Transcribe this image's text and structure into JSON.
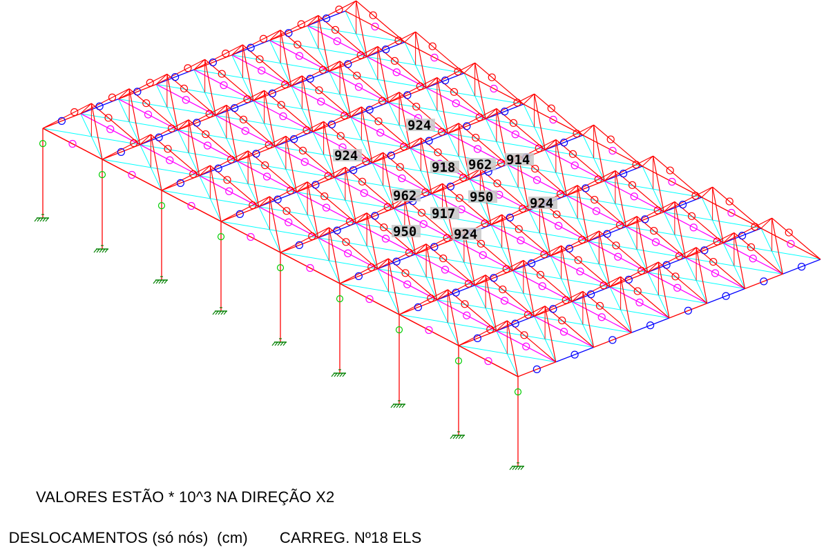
{
  "caption": {
    "line1": "VALORES ESTÃO * 10^3 NA DIREÇÃO X2",
    "line2_left": "DESLOCAMENTOS (só nós)  (cm)",
    "line2_right": "CARREG. Nº18 ELS"
  },
  "value_labels": [
    "924",
    "924",
    "918",
    "962",
    "914",
    "962",
    "950",
    "924",
    "917",
    "950",
    "924"
  ],
  "colors": {
    "frame": "#ff0000",
    "bracing": "#0000ff",
    "purlin": "#ff00ff",
    "diagonal": "#00ffff",
    "column_node": "#00cc00",
    "support": "#008000",
    "background": "#ffffff",
    "label_bg": "#c8c8c8"
  },
  "symbols": {
    "node_marker": "circle-node-icon",
    "support": "fixed-support-icon"
  }
}
